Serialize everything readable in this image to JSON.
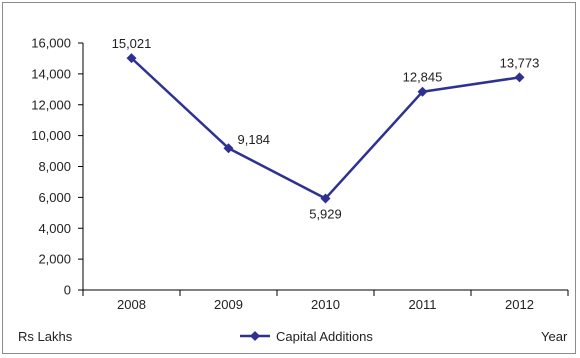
{
  "chart_data": {
    "type": "line",
    "title": "",
    "xlabel": "Year",
    "ylabel": "Rs Lakhs",
    "categories": [
      "2008",
      "2009",
      "2010",
      "2011",
      "2012"
    ],
    "series": [
      {
        "name": "Capital Additions",
        "values": [
          15021,
          9184,
          5929,
          12845,
          13773
        ],
        "labels": [
          "15,021",
          "9,184",
          "5,929",
          "12,845",
          "13,773"
        ]
      }
    ],
    "ylim": [
      0,
      16000
    ],
    "yticks": [
      0,
      2000,
      4000,
      6000,
      8000,
      10000,
      12000,
      14000,
      16000
    ],
    "ytick_labels": [
      "0",
      "2,000",
      "4,000",
      "6,000",
      "8,000",
      "10,000",
      "12,000",
      "14,000",
      "16,000"
    ],
    "grid": false,
    "legend_position": "bottom-center",
    "colors": {
      "series": "#2e3192",
      "axis": "#000000"
    }
  }
}
